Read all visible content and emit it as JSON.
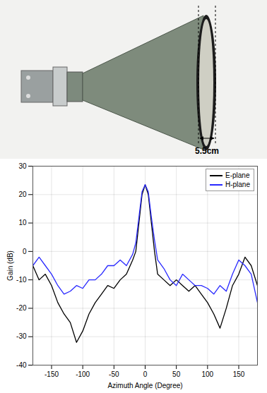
{
  "photo": {
    "dimension_label": "5.5cm"
  },
  "chart_data": {
    "type": "line",
    "x_label": "Azimuth Angle (Degree)",
    "y_label": "Gain (dB)",
    "x": [
      -180,
      -170,
      -160,
      -150,
      -140,
      -130,
      -120,
      -110,
      -100,
      -90,
      -80,
      -70,
      -60,
      -50,
      -40,
      -30,
      -20,
      -15,
      -10,
      -5,
      0,
      5,
      10,
      15,
      20,
      30,
      40,
      50,
      60,
      70,
      80,
      90,
      100,
      110,
      120,
      130,
      140,
      150,
      160,
      170,
      180
    ],
    "series": [
      {
        "name": "E-plane",
        "color": "#000000",
        "values": [
          -5,
          -10,
          -8,
          -12,
          -18,
          -22,
          -25,
          -32,
          -28,
          -22,
          -18,
          -15,
          -12,
          -13,
          -10,
          -8,
          -3,
          0,
          10,
          20,
          23.5,
          20,
          10,
          0,
          -8,
          -10,
          -12,
          -10,
          -12,
          -14,
          -12,
          -15,
          -18,
          -22,
          -27,
          -20,
          -12,
          -8,
          -2,
          -5,
          -12
        ]
      },
      {
        "name": "H-plane",
        "color": "#2929ff",
        "values": [
          -5,
          -2,
          -5,
          -8,
          -12,
          -15,
          -14,
          -12,
          -13,
          -10,
          -10,
          -8,
          -5,
          -5,
          -3,
          -5,
          -1,
          3,
          12,
          21,
          23.5,
          21,
          12,
          4,
          -3,
          -6,
          -10,
          -12,
          -8,
          -10,
          -12,
          -12,
          -13,
          -15,
          -12,
          -14,
          -8,
          -3,
          -5,
          -8,
          -18
        ]
      }
    ],
    "xlim": [
      -180,
      180
    ],
    "xticks": [
      -150,
      -100,
      -50,
      0,
      50,
      100,
      150
    ],
    "ylim": [
      -40,
      30
    ],
    "yticks": [
      -40,
      -30,
      -20,
      -10,
      0,
      10,
      20,
      30
    ],
    "grid": true,
    "legend": "upper right"
  }
}
